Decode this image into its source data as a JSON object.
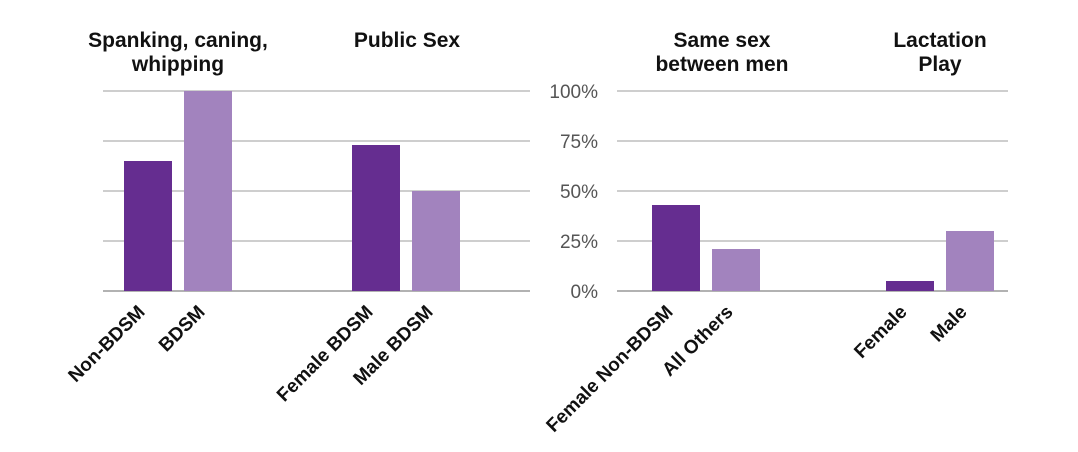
{
  "chart_data": [
    {
      "type": "bar",
      "title": "Spanking, caning, whipping",
      "title_lines": [
        "Spanking, caning,",
        "whipping"
      ],
      "categories": [
        "Non-BDSM",
        "BDSM"
      ],
      "values": [
        65,
        100
      ],
      "ylim": [
        0,
        100
      ],
      "grid": true
    },
    {
      "type": "bar",
      "title": "Public Sex",
      "title_lines": [
        "Public Sex"
      ],
      "categories": [
        "Female BDSM",
        "Male BDSM"
      ],
      "values": [
        73,
        50
      ],
      "ylim": [
        0,
        100
      ],
      "grid": true
    },
    {
      "type": "bar",
      "title": "Same sex between men",
      "title_lines": [
        "Same sex",
        "between men"
      ],
      "categories": [
        "Female Non-BDSM",
        "All Others"
      ],
      "values": [
        43,
        21
      ],
      "ylim": [
        0,
        100
      ],
      "grid": true
    },
    {
      "type": "bar",
      "title": "Lactation Play",
      "title_lines": [
        "Lactation",
        "Play"
      ],
      "categories": [
        "Female",
        "Male"
      ],
      "values": [
        5,
        30
      ],
      "ylim": [
        0,
        100
      ],
      "grid": true
    }
  ],
  "y_ticks": [
    "0%",
    "25%",
    "50%",
    "75%",
    "100%"
  ],
  "colors": {
    "dark": "#652d90",
    "light": "#a283be"
  }
}
